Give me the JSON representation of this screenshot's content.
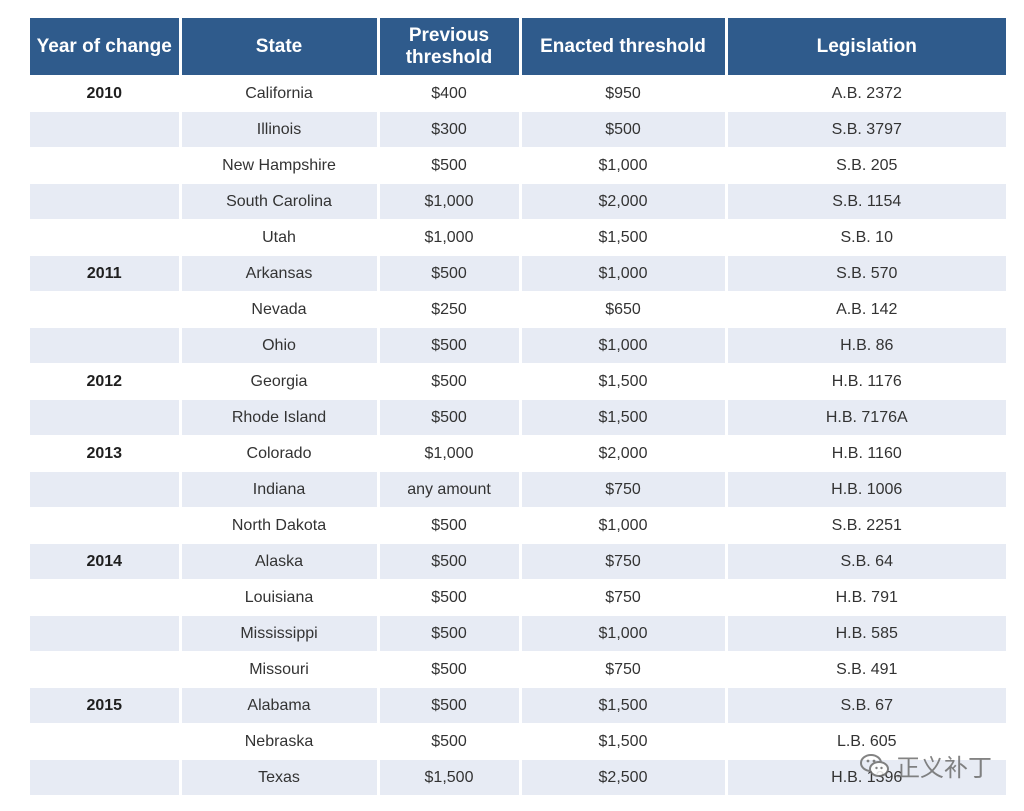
{
  "table": {
    "headers": [
      "Year of change",
      "State",
      "Previous threshold",
      "Enacted threshold",
      "Legislation"
    ],
    "rows": [
      {
        "year": "2010",
        "state": "California",
        "previous": "$400",
        "enacted": "$950",
        "legislation": "A.B. 2372"
      },
      {
        "year": "",
        "state": "Illinois",
        "previous": "$300",
        "enacted": "$500",
        "legislation": "S.B. 3797"
      },
      {
        "year": "",
        "state": "New Hampshire",
        "previous": "$500",
        "enacted": "$1,000",
        "legislation": "S.B. 205"
      },
      {
        "year": "",
        "state": "South Carolina",
        "previous": "$1,000",
        "enacted": "$2,000",
        "legislation": "S.B. 1154"
      },
      {
        "year": "",
        "state": "Utah",
        "previous": "$1,000",
        "enacted": "$1,500",
        "legislation": "S.B. 10"
      },
      {
        "year": "2011",
        "state": "Arkansas",
        "previous": "$500",
        "enacted": "$1,000",
        "legislation": "S.B. 570"
      },
      {
        "year": "",
        "state": "Nevada",
        "previous": "$250",
        "enacted": "$650",
        "legislation": "A.B. 142"
      },
      {
        "year": "",
        "state": "Ohio",
        "previous": "$500",
        "enacted": "$1,000",
        "legislation": "H.B. 86"
      },
      {
        "year": "2012",
        "state": "Georgia",
        "previous": "$500",
        "enacted": "$1,500",
        "legislation": "H.B. 1176"
      },
      {
        "year": "",
        "state": "Rhode Island",
        "previous": "$500",
        "enacted": "$1,500",
        "legislation": "H.B. 7176A"
      },
      {
        "year": "2013",
        "state": "Colorado",
        "previous": "$1,000",
        "enacted": "$2,000",
        "legislation": "H.B. 1160"
      },
      {
        "year": "",
        "state": "Indiana",
        "previous": "any amount",
        "enacted": "$750",
        "legislation": "H.B. 1006"
      },
      {
        "year": "",
        "state": "North Dakota",
        "previous": "$500",
        "enacted": "$1,000",
        "legislation": "S.B. 2251"
      },
      {
        "year": "2014",
        "state": "Alaska",
        "previous": "$500",
        "enacted": "$750",
        "legislation": "S.B. 64"
      },
      {
        "year": "",
        "state": "Louisiana",
        "previous": "$500",
        "enacted": "$750",
        "legislation": "H.B. 791"
      },
      {
        "year": "",
        "state": "Mississippi",
        "previous": "$500",
        "enacted": "$1,000",
        "legislation": "H.B. 585"
      },
      {
        "year": "",
        "state": "Missouri",
        "previous": "$500",
        "enacted": "$750",
        "legislation": "S.B. 491"
      },
      {
        "year": "2015",
        "state": "Alabama",
        "previous": "$500",
        "enacted": "$1,500",
        "legislation": "S.B. 67"
      },
      {
        "year": "",
        "state": "Nebraska",
        "previous": "$500",
        "enacted": "$1,500",
        "legislation": "L.B. 605"
      },
      {
        "year": "",
        "state": "Texas",
        "previous": "$1,500",
        "enacted": "$2,500",
        "legislation": "H.B. 1396"
      }
    ]
  },
  "watermark": {
    "text": "正义补丁",
    "icon": "wechat-icon"
  },
  "colors": {
    "header_bg": "#2f5b8c",
    "stripe_bg": "#e7ebf4"
  }
}
